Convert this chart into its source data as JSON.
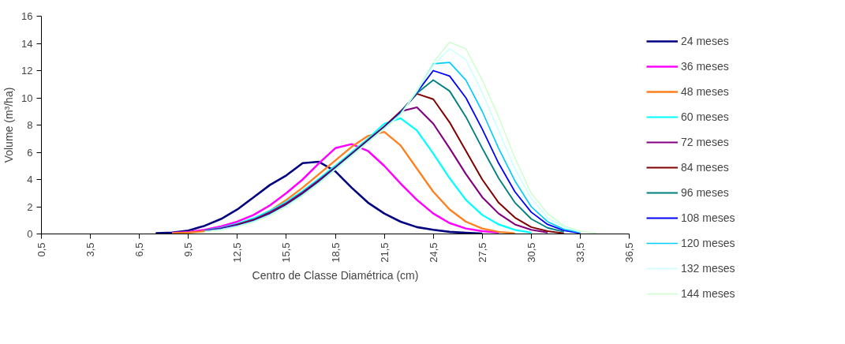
{
  "chart_data": {
    "type": "line",
    "xlabel": "Centro de Classe Diamétrica (cm)",
    "ylabel": "Volume (m³/ha)",
    "xlim": [
      0.5,
      36.5
    ],
    "xticks": [
      {
        "value": 0.5,
        "label": "0,5"
      },
      {
        "value": 3.5,
        "label": "3,5"
      },
      {
        "value": 6.5,
        "label": "6,5"
      },
      {
        "value": 9.5,
        "label": "9,5"
      },
      {
        "value": 12.5,
        "label": "12,5"
      },
      {
        "value": 15.5,
        "label": "15,5"
      },
      {
        "value": 18.5,
        "label": "18,5"
      },
      {
        "value": 21.5,
        "label": "21,5"
      },
      {
        "value": 24.5,
        "label": "24,5"
      },
      {
        "value": 27.5,
        "label": "27,5"
      },
      {
        "value": 30.5,
        "label": "30,5"
      },
      {
        "value": 33.5,
        "label": "33,5"
      },
      {
        "value": 36.5,
        "label": "36,5"
      }
    ],
    "ylim": [
      0,
      16
    ],
    "yticks": [
      0,
      2,
      4,
      6,
      8,
      10,
      12,
      14,
      16
    ],
    "grid": false,
    "legend": "right",
    "marker": "none",
    "line_style": "solid",
    "series": [
      {
        "name": "24 meses",
        "color": "#000080",
        "x": [
          7.5,
          8.5,
          9.5,
          10.5,
          11.5,
          12.5,
          13.5,
          14.5,
          15.5,
          16.5,
          17.5,
          18.5,
          19.5,
          20.5,
          21.5,
          22.5,
          23.5,
          24.5,
          25.5,
          26.5,
          27.5
        ],
        "values": [
          0.05,
          0.1,
          0.25,
          0.6,
          1.1,
          1.8,
          2.7,
          3.6,
          4.3,
          5.2,
          5.3,
          4.6,
          3.4,
          2.3,
          1.5,
          0.9,
          0.5,
          0.3,
          0.15,
          0.08,
          0.03
        ]
      },
      {
        "name": "36 meses",
        "color": "#ff00ff",
        "x": [
          8.5,
          9.5,
          10.5,
          11.5,
          12.5,
          13.5,
          14.5,
          15.5,
          16.5,
          17.5,
          18.5,
          19.5,
          20.5,
          21.5,
          22.5,
          23.5,
          24.5,
          25.5,
          26.5,
          27.5,
          28.5
        ],
        "values": [
          0.08,
          0.15,
          0.3,
          0.55,
          0.9,
          1.4,
          2.1,
          3.0,
          4.0,
          5.2,
          6.3,
          6.6,
          6.1,
          5.0,
          3.7,
          2.5,
          1.5,
          0.8,
          0.4,
          0.2,
          0.1
        ]
      },
      {
        "name": "48 meses",
        "color": "#ff8020",
        "x": [
          8.5,
          9.5,
          10.5,
          11.5,
          12.5,
          13.5,
          14.5,
          15.5,
          16.5,
          17.5,
          18.5,
          19.5,
          20.5,
          21.5,
          22.5,
          23.5,
          24.5,
          25.5,
          26.5,
          27.5,
          28.5,
          29.5
        ],
        "values": [
          0.05,
          0.1,
          0.2,
          0.4,
          0.7,
          1.1,
          1.7,
          2.5,
          3.4,
          4.4,
          5.4,
          6.4,
          7.2,
          7.5,
          6.5,
          4.8,
          3.1,
          1.8,
          0.9,
          0.4,
          0.15,
          0.05
        ]
      },
      {
        "name": "60 meses",
        "color": "#00ffff",
        "x": [
          10.5,
          11.5,
          12.5,
          13.5,
          14.5,
          15.5,
          16.5,
          17.5,
          18.5,
          19.5,
          20.5,
          21.5,
          22.5,
          23.5,
          24.5,
          25.5,
          26.5,
          27.5,
          28.5,
          29.5,
          30.5
        ],
        "values": [
          0.25,
          0.45,
          0.75,
          1.15,
          1.7,
          2.35,
          3.15,
          4.05,
          5.0,
          6.0,
          7.0,
          8.1,
          8.5,
          7.6,
          5.9,
          4.1,
          2.5,
          1.4,
          0.7,
          0.3,
          0.1
        ]
      },
      {
        "name": "72 meses",
        "color": "#800080",
        "x": [
          10.5,
          11.5,
          12.5,
          13.5,
          14.5,
          15.5,
          16.5,
          17.5,
          18.5,
          19.5,
          20.5,
          21.5,
          22.5,
          23.5,
          24.5,
          25.5,
          26.5,
          27.5,
          28.5,
          29.5,
          30.5,
          31.5
        ],
        "values": [
          0.23,
          0.4,
          0.7,
          1.05,
          1.6,
          2.25,
          3.05,
          3.95,
          4.9,
          5.9,
          6.9,
          7.9,
          9.0,
          9.3,
          8.1,
          6.3,
          4.4,
          2.7,
          1.5,
          0.7,
          0.3,
          0.1
        ]
      },
      {
        "name": "84 meses",
        "color": "#800000",
        "x": [
          12.5,
          13.5,
          14.5,
          15.5,
          16.5,
          17.5,
          18.5,
          19.5,
          20.5,
          21.5,
          22.5,
          23.5,
          24.5,
          25.5,
          26.5,
          27.5,
          28.5,
          29.5,
          30.5,
          31.5,
          32.5
        ],
        "values": [
          0.65,
          1.0,
          1.5,
          2.15,
          2.95,
          3.85,
          4.85,
          5.85,
          6.85,
          7.85,
          9.0,
          10.3,
          9.9,
          8.2,
          6.1,
          4.0,
          2.3,
          1.2,
          0.5,
          0.2,
          0.05
        ]
      },
      {
        "name": "96 meses",
        "color": "#008080",
        "x": [
          22.5,
          23.5,
          24.5,
          25.5,
          26.5,
          27.5,
          28.5,
          29.5,
          30.5,
          31.5,
          32.5
        ],
        "values": [
          8.95,
          10.35,
          11.3,
          10.5,
          8.6,
          6.3,
          4.1,
          2.3,
          1.1,
          0.45,
          0.15
        ]
      },
      {
        "name": "108 meses",
        "color": "#0000ff",
        "x": [
          10.5,
          11.5,
          12.5,
          13.5,
          14.5,
          15.5,
          16.5,
          17.5,
          18.5,
          19.5,
          20.5,
          21.5,
          22.5,
          23.5,
          24.5,
          25.5,
          26.5,
          27.5,
          28.5,
          29.5,
          30.5,
          31.5,
          32.5,
          33.5
        ],
        "values": [
          0.2,
          0.35,
          0.6,
          0.95,
          1.45,
          2.1,
          2.9,
          3.8,
          4.8,
          5.8,
          6.8,
          7.8,
          8.9,
          10.4,
          12.0,
          11.6,
          10.0,
          7.7,
          5.2,
          3.1,
          1.6,
          0.7,
          0.25,
          0.05
        ]
      },
      {
        "name": "120 meses",
        "color": "#00ccff",
        "x": [
          10.5,
          11.5,
          12.5,
          13.5,
          14.5,
          15.5,
          16.5,
          17.5,
          18.5,
          19.5,
          20.5,
          21.5,
          22.5,
          23.5,
          24.5,
          25.5,
          26.5,
          27.5,
          28.5,
          29.5,
          30.5,
          31.5,
          32.5,
          33.5
        ],
        "values": [
          0.19,
          0.33,
          0.58,
          0.92,
          1.42,
          2.07,
          2.87,
          3.77,
          4.77,
          5.77,
          6.77,
          7.77,
          8.85,
          10.45,
          12.5,
          12.6,
          11.3,
          9.0,
          6.3,
          3.9,
          2.0,
          0.9,
          0.35,
          0.1
        ]
      },
      {
        "name": "132 meses",
        "color": "#ccffff",
        "x": [
          10.5,
          11.5,
          12.5,
          13.5,
          14.5,
          15.5,
          16.5,
          17.5,
          18.5,
          19.5,
          20.5,
          21.5,
          22.5,
          23.5,
          24.5,
          25.5,
          26.5,
          27.5,
          28.5,
          29.5,
          30.5,
          31.5,
          32.5,
          33.5
        ],
        "values": [
          0.18,
          0.32,
          0.56,
          0.9,
          1.4,
          2.05,
          2.85,
          3.75,
          4.75,
          5.75,
          6.75,
          7.75,
          8.8,
          10.5,
          12.4,
          13.6,
          12.8,
          10.4,
          7.6,
          4.8,
          2.6,
          1.2,
          0.5,
          0.15
        ]
      },
      {
        "name": "144 meses",
        "color": "#ccffcc",
        "x": [
          10.5,
          11.5,
          12.5,
          13.5,
          14.5,
          15.5,
          16.5,
          17.5,
          18.5,
          19.5,
          20.5,
          21.5,
          22.5,
          23.5,
          24.5,
          25.5,
          26.5,
          27.5,
          28.5,
          29.5,
          30.5,
          31.5,
          32.5,
          33.5,
          34.5
        ],
        "values": [
          0.17,
          0.3,
          0.54,
          0.88,
          1.37,
          2.02,
          2.82,
          3.72,
          4.72,
          5.72,
          6.72,
          7.72,
          8.75,
          10.55,
          12.6,
          14.1,
          13.6,
          11.3,
          8.6,
          5.6,
          3.0,
          1.5,
          0.6,
          0.2,
          0.05
        ]
      }
    ]
  }
}
